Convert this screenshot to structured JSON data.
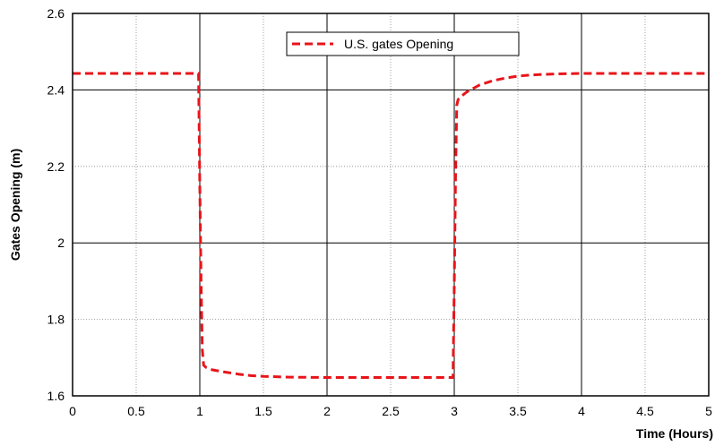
{
  "chart_data": {
    "type": "line",
    "title": "",
    "xlabel": "Time (Hours)",
    "ylabel": "Gates Opening (m)",
    "xlim": [
      0,
      5
    ],
    "ylim": [
      1.6,
      2.6
    ],
    "xticks": [
      0,
      0.5,
      1,
      1.5,
      2,
      2.5,
      3,
      3.5,
      4,
      4.5,
      5
    ],
    "xtick_labels": [
      "0",
      "0.5",
      "1",
      "1.5",
      "2",
      "2.5",
      "3",
      "3.5",
      "4",
      "4.5",
      "5"
    ],
    "yticks": [
      1.6,
      1.8,
      2.0,
      2.2,
      2.4,
      2.6
    ],
    "ytick_labels": [
      "1.6",
      "1.8",
      "2",
      "2.2",
      "2.4",
      "2.6"
    ],
    "grid": true,
    "legend_position": "top-center",
    "series": [
      {
        "name": "U.S. gates Opening",
        "color": "#e8141a",
        "style": "dashed",
        "x": [
          0,
          0.98,
          0.99,
          1.0,
          1.01,
          1.02,
          1.03,
          1.05,
          1.1,
          1.2,
          1.3,
          1.4,
          1.5,
          1.7,
          2.0,
          2.5,
          2.98,
          2.99,
          3.0,
          3.01,
          3.02,
          3.03,
          3.05,
          3.1,
          3.2,
          3.3,
          3.4,
          3.5,
          3.6,
          3.8,
          4.0,
          4.5,
          5.0
        ],
        "y": [
          2.443,
          2.443,
          2.443,
          2.15,
          1.9,
          1.72,
          1.68,
          1.674,
          1.668,
          1.662,
          1.657,
          1.653,
          1.651,
          1.649,
          1.648,
          1.648,
          1.648,
          1.648,
          1.89,
          2.17,
          2.36,
          2.375,
          2.382,
          2.395,
          2.413,
          2.424,
          2.431,
          2.436,
          2.439,
          2.442,
          2.443,
          2.443,
          2.443
        ]
      }
    ]
  }
}
